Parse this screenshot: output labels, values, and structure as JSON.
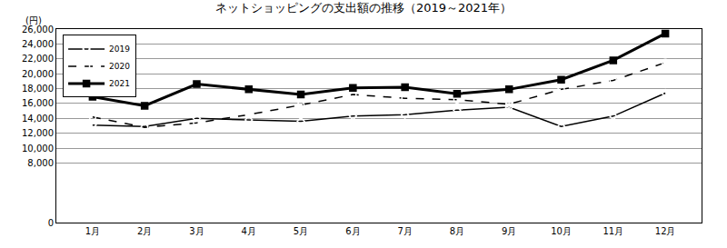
{
  "chart_data": {
    "type": "line",
    "title": "ネットショッピングの支出額の推移（2019～2021年）",
    "ylabel": "(円)",
    "categories": [
      "1月",
      "2月",
      "3月",
      "4月",
      "5月",
      "6月",
      "7月",
      "8月",
      "9月",
      "10月",
      "11月",
      "12月"
    ],
    "series": [
      {
        "name": "2019",
        "color": "#000000",
        "marker": "diamond-open",
        "line_style": "solid",
        "values": [
          13100,
          12900,
          14000,
          13800,
          13600,
          14300,
          14500,
          15100,
          15500,
          12900,
          14300,
          17400
        ]
      },
      {
        "name": "2020",
        "color": "#000000",
        "marker": "circle-open",
        "line_style": "dash",
        "values": [
          14200,
          12800,
          13400,
          14500,
          15800,
          17200,
          16700,
          16500,
          15900,
          17900,
          19100,
          21500
        ]
      },
      {
        "name": "2021",
        "color": "#000000",
        "marker": "square",
        "line_style": "solid",
        "values": [
          16900,
          15700,
          18600,
          17900,
          17200,
          18100,
          18200,
          17300,
          17900,
          19200,
          21800,
          25400
        ]
      }
    ],
    "ylim": [
      0,
      26000
    ],
    "yticks": [
      0,
      {
        "value": 8000,
        "label": "8,000"
      },
      {
        "value": 10000,
        "label": "10,000"
      },
      {
        "value": 12000,
        "label": "12,000"
      },
      {
        "value": 14000,
        "label": "14,000"
      },
      {
        "value": 16000,
        "label": "16,000"
      },
      {
        "value": 18000,
        "label": "18,000"
      },
      {
        "value": 20000,
        "label": "20,000"
      },
      {
        "value": 22000,
        "label": "22,000"
      },
      {
        "value": 24000,
        "label": "24,000"
      },
      {
        "value": 26000,
        "label": "26,000"
      }
    ],
    "grid": true,
    "legend": "upper left"
  }
}
